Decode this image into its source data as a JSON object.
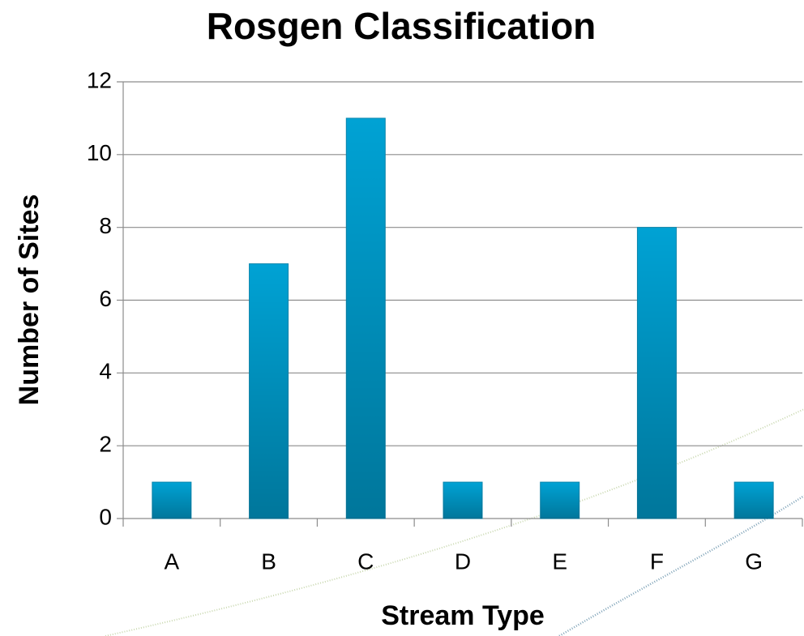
{
  "chart_data": {
    "type": "bar",
    "title": "Rosgen Classification",
    "x_label": "Stream Type",
    "y_label": "Number of Sites",
    "categories": [
      "A",
      "B",
      "C",
      "D",
      "E",
      "F",
      "G"
    ],
    "values": [
      1,
      7,
      11,
      1,
      1,
      8,
      1
    ],
    "color": "#00a2d4",
    "ylim": [
      0,
      12
    ],
    "yticks": [
      0,
      2,
      4,
      6,
      8,
      10,
      12
    ],
    "grid": true
  }
}
